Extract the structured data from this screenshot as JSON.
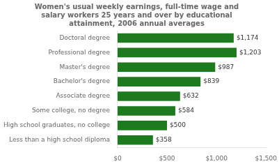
{
  "chart_data": {
    "type": "bar",
    "orientation": "horizontal",
    "title": "Women's usual weekly earnings, full-time wage and\nsalary workers 25 years and over by educational\nattainment, 2006 annual averages",
    "categories": [
      "Less than a high school diploma",
      "High school graduates, no college",
      "Some college, no degree",
      "Associate degree",
      "Bachelor's degree",
      "Master's degree",
      "Professional degree",
      "Doctoral degree"
    ],
    "values": [
      358,
      500,
      584,
      632,
      839,
      987,
      1203,
      1174
    ],
    "value_labels": [
      "$358",
      "$500",
      "$584",
      "$632",
      "$839",
      "$987",
      "$1,203",
      "$1,174"
    ],
    "data_labels": true,
    "color": "#1e7a1e",
    "xlim": [
      0,
      1500
    ],
    "xticks": [
      {
        "value": 0,
        "label": "$0"
      },
      {
        "value": 500,
        "label": "$500"
      },
      {
        "value": 1000,
        "label": "$1,000"
      },
      {
        "value": 1500,
        "label": "$1,500"
      }
    ],
    "grid": false
  }
}
